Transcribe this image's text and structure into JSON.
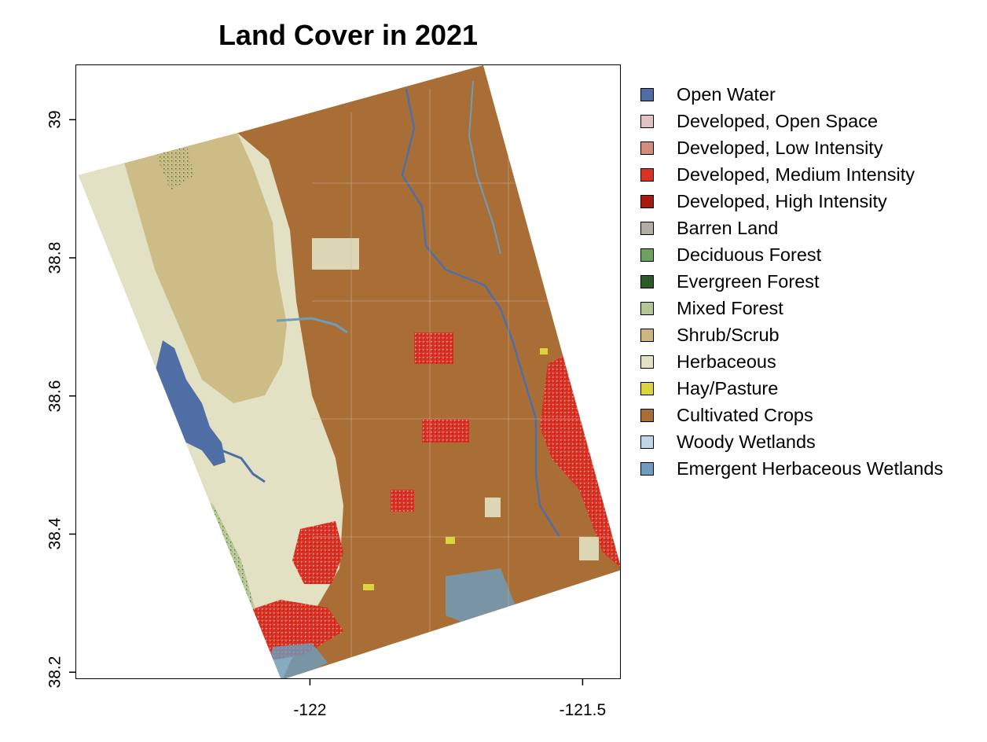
{
  "title": "Land Cover in 2021",
  "map": {
    "x_ticks": [
      {
        "value": -122,
        "label": "-122"
      },
      {
        "value": -121.5,
        "label": "-121.5"
      }
    ],
    "y_ticks": [
      {
        "value": 39,
        "label": "39"
      },
      {
        "value": 38.8,
        "label": "38.8"
      },
      {
        "value": 38.6,
        "label": "38.6"
      },
      {
        "value": 38.4,
        "label": "38.4"
      },
      {
        "value": 38.2,
        "label": "38.2"
      }
    ],
    "x_range": [
      -122.43,
      -121.43
    ],
    "y_range": [
      38.19,
      39.08
    ]
  },
  "legend": [
    {
      "label": "Open Water",
      "color": "#4f6ea6"
    },
    {
      "label": "Developed, Open Space",
      "color": "#e0c2c2"
    },
    {
      "label": "Developed, Low Intensity",
      "color": "#d08c7d"
    },
    {
      "label": "Developed, Medium Intensity",
      "color": "#dc3224"
    },
    {
      "label": "Developed, High Intensity",
      "color": "#a8190f"
    },
    {
      "label": "Barren Land",
      "color": "#b2ada2"
    },
    {
      "label": "Deciduous Forest",
      "color": "#6ca25d"
    },
    {
      "label": "Evergreen Forest",
      "color": "#2b5b2a"
    },
    {
      "label": "Mixed Forest",
      "color": "#b6c693"
    },
    {
      "label": "Shrub/Scrub",
      "color": "#cbb880"
    },
    {
      "label": "Herbaceous",
      "color": "#e2e1c3"
    },
    {
      "label": "Hay/Pasture",
      "color": "#dcd43d"
    },
    {
      "label": "Cultivated Crops",
      "color": "#a86e35"
    },
    {
      "label": "Woody Wetlands",
      "color": "#bed6ea"
    },
    {
      "label": "Emergent Herbaceous Wetlands",
      "color": "#6d9dbe"
    }
  ]
}
